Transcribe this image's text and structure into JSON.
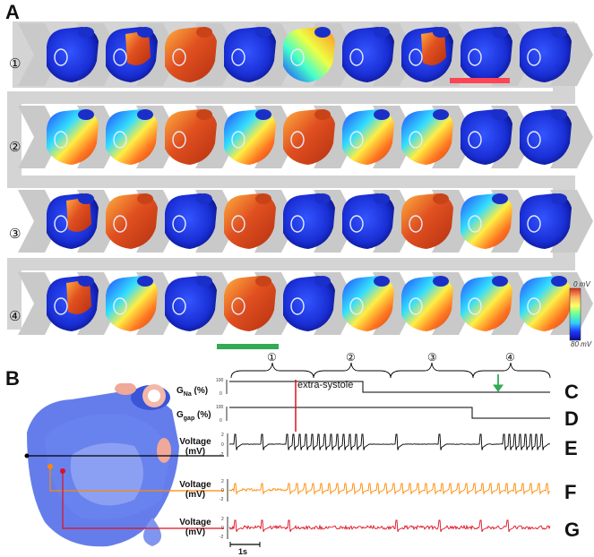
{
  "panels": {
    "A": "A",
    "B": "B",
    "C": "C",
    "D": "D",
    "E": "E",
    "F": "F",
    "G": "G"
  },
  "rows": [
    "①",
    "②",
    "③",
    "④"
  ],
  "snapshots": [
    [
      "blue",
      "red-partial",
      "red",
      "blue",
      "green",
      "blue",
      "red-partial",
      "blue",
      "blue"
    ],
    [
      "mixed",
      "mixed",
      "red",
      "mixed",
      "red",
      "mixed",
      "mixed",
      "blue",
      "blue"
    ],
    [
      "red-partial",
      "red",
      "blue",
      "red",
      "blue",
      "blue",
      "red",
      "mixed",
      "blue"
    ],
    [
      "red-partial",
      "mixed",
      "blue",
      "red",
      "blue",
      "mixed",
      "mixed",
      "mixed",
      "mixed"
    ]
  ],
  "colorbar": {
    "top_label": "0 mV",
    "bottom_label": "80 mV",
    "colors": [
      "#d7301f",
      "#fdae61",
      "#ffff66",
      "#66ff99",
      "#33ccff",
      "#1f3aff",
      "#0a0a8c"
    ]
  },
  "markers": {
    "bar_red": "#ff4455",
    "bar_green": "#33aa55"
  },
  "brace_labels": [
    "①",
    "②",
    "③",
    "④"
  ],
  "gna_label": "G",
  "gna_sub": "Na",
  "gna_unit": "(%)",
  "ggap_label": "G",
  "ggap_sub": "gap",
  "ggap_unit": "(%)",
  "extra_systole": "extra-systole",
  "voltage_label": "Voltage",
  "voltage_unit": "(mV)",
  "gna_ticks": [
    "100",
    "0"
  ],
  "ggap_ticks": [
    "100",
    "0"
  ],
  "voltage_ticks": [
    "2",
    "0",
    "-2"
  ],
  "time_scale": "1s",
  "traces": {
    "E_color": "#000000",
    "F_color": "#ff8800",
    "G_color": "#dd1122"
  },
  "anatomy_colors": {
    "heart": "#4a66e6",
    "ring": "#f4b8a8",
    "line": "#000000",
    "orange_dot": "#ff8800",
    "red_dot": "#dd1122"
  }
}
